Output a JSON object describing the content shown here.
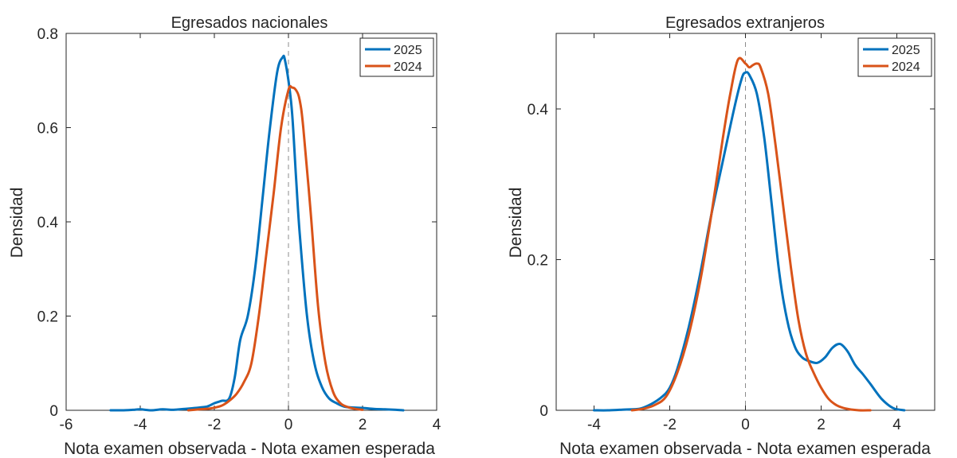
{
  "chart_data": [
    {
      "type": "line",
      "title": "Egresados nacionales",
      "xlabel": "Nota examen observada - Nota examen esperada",
      "ylabel": "Densidad",
      "xlim": [
        -6,
        4
      ],
      "ylim": [
        0,
        0.8
      ],
      "xticks": [
        -6,
        -4,
        -2,
        0,
        2,
        4
      ],
      "yticks": [
        0,
        0.2,
        0.4,
        0.6,
        0.8
      ],
      "xtick_labels": [
        "-6",
        "-4",
        "-2",
        "0",
        "2",
        "4"
      ],
      "ytick_labels": [
        "0",
        "0.2",
        "0.4",
        "0.6",
        "0.8"
      ],
      "legend_position": "top-right",
      "reference_line_x": 0,
      "series": [
        {
          "name": "2025",
          "color": "#0072BD",
          "x": [
            -4.8,
            -4.5,
            -4.2,
            -4.0,
            -3.7,
            -3.4,
            -3.1,
            -2.8,
            -2.5,
            -2.2,
            -2.0,
            -1.8,
            -1.6,
            -1.45,
            -1.3,
            -1.1,
            -0.9,
            -0.7,
            -0.5,
            -0.3,
            -0.15,
            -0.1,
            0.0,
            0.1,
            0.2,
            0.3,
            0.5,
            0.7,
            0.9,
            1.1,
            1.3,
            1.5,
            1.7,
            2.0,
            2.3,
            2.6,
            2.9,
            3.1
          ],
          "y": [
            0.0,
            0.0,
            0.001,
            0.002,
            0.0,
            0.002,
            0.001,
            0.003,
            0.005,
            0.008,
            0.015,
            0.02,
            0.025,
            0.07,
            0.15,
            0.2,
            0.3,
            0.45,
            0.6,
            0.72,
            0.75,
            0.745,
            0.7,
            0.63,
            0.5,
            0.38,
            0.2,
            0.1,
            0.05,
            0.025,
            0.015,
            0.008,
            0.006,
            0.005,
            0.003,
            0.002,
            0.001,
            0.0
          ]
        },
        {
          "name": "2024",
          "color": "#D95319",
          "x": [
            -2.7,
            -2.4,
            -2.1,
            -1.8,
            -1.6,
            -1.4,
            -1.2,
            -1.0,
            -0.8,
            -0.6,
            -0.4,
            -0.2,
            0.0,
            0.1,
            0.2,
            0.3,
            0.4,
            0.6,
            0.8,
            1.0,
            1.2,
            1.4,
            1.6,
            1.8,
            2.0
          ],
          "y": [
            0.0,
            0.002,
            0.004,
            0.01,
            0.02,
            0.035,
            0.06,
            0.1,
            0.2,
            0.33,
            0.46,
            0.6,
            0.68,
            0.685,
            0.68,
            0.66,
            0.6,
            0.42,
            0.22,
            0.1,
            0.04,
            0.015,
            0.007,
            0.003,
            0.001
          ]
        }
      ]
    },
    {
      "type": "line",
      "title": "Egresados extranjeros",
      "xlabel": "Nota examen observada - Nota examen esperada",
      "ylabel": "Densidad",
      "xlim": [
        -5,
        5
      ],
      "ylim": [
        0,
        0.5
      ],
      "xticks": [
        -4,
        -2,
        0,
        2,
        4
      ],
      "yticks": [
        0,
        0.2,
        0.4
      ],
      "xtick_labels": [
        "-4",
        "-2",
        "0",
        "2",
        "4"
      ],
      "ytick_labels": [
        "0",
        "0.2",
        "0.4"
      ],
      "legend_position": "top-right",
      "reference_line_x": 0,
      "series": [
        {
          "name": "2025",
          "color": "#0072BD",
          "x": [
            -4.0,
            -3.6,
            -3.2,
            -2.8,
            -2.5,
            -2.2,
            -2.0,
            -1.8,
            -1.5,
            -1.2,
            -0.9,
            -0.6,
            -0.3,
            -0.1,
            0.0,
            0.1,
            0.3,
            0.5,
            0.7,
            0.9,
            1.1,
            1.3,
            1.5,
            1.7,
            1.9,
            2.1,
            2.3,
            2.5,
            2.7,
            2.9,
            3.1,
            3.3,
            3.6,
            3.9,
            4.2
          ],
          "y": [
            0.0,
            0.0,
            0.001,
            0.002,
            0.008,
            0.018,
            0.03,
            0.055,
            0.11,
            0.18,
            0.26,
            0.33,
            0.4,
            0.44,
            0.448,
            0.445,
            0.42,
            0.36,
            0.27,
            0.18,
            0.12,
            0.085,
            0.07,
            0.065,
            0.063,
            0.07,
            0.083,
            0.088,
            0.078,
            0.06,
            0.048,
            0.035,
            0.015,
            0.003,
            0.0
          ]
        },
        {
          "name": "2024",
          "color": "#D95319",
          "x": [
            -3.0,
            -2.7,
            -2.4,
            -2.1,
            -1.8,
            -1.5,
            -1.2,
            -0.9,
            -0.6,
            -0.4,
            -0.2,
            0.0,
            0.1,
            0.2,
            0.3,
            0.4,
            0.6,
            0.8,
            1.0,
            1.2,
            1.4,
            1.6,
            1.8,
            2.0,
            2.2,
            2.4,
            2.6,
            2.8,
            3.0,
            3.3
          ],
          "y": [
            0.0,
            0.002,
            0.007,
            0.018,
            0.05,
            0.1,
            0.17,
            0.26,
            0.36,
            0.42,
            0.465,
            0.46,
            0.455,
            0.458,
            0.46,
            0.455,
            0.42,
            0.35,
            0.27,
            0.19,
            0.12,
            0.075,
            0.05,
            0.03,
            0.015,
            0.007,
            0.003,
            0.001,
            0.0,
            0.0
          ]
        }
      ]
    }
  ]
}
